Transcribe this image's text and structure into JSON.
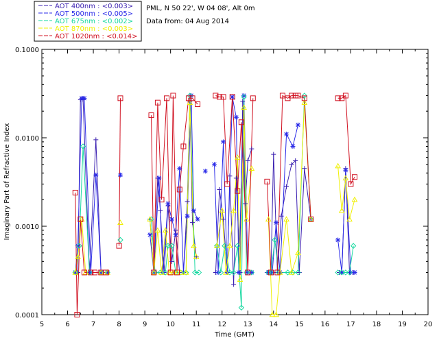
{
  "chart_data": {
    "type": "line",
    "title": "PML, N 50 22', W 04 08', Alt 0m",
    "subtitle": "Data from: 04 Aug 2014",
    "xlabel": "Time (GMT)",
    "ylabel": "Imaginary Part of Refractive Index",
    "xlim": [
      5,
      20
    ],
    "ylim": [
      0.0001,
      0.1
    ],
    "yscale": "log",
    "x_ticks": [
      "5",
      "6",
      "7",
      "8",
      "9",
      "10",
      "11",
      "12",
      "13",
      "14",
      "15",
      "16",
      "17",
      "18",
      "19",
      "20"
    ],
    "y_ticks": [
      "0.0001",
      "0.0010",
      "0.0100",
      "0.1000"
    ],
    "legend_position": "top-left, outside plot",
    "series": [
      {
        "name": "AOT  400nm : <0.003>",
        "color": "#3a1fb0",
        "marker": "plus",
        "points": [
          [
            6.3,
            0.0003
          ],
          [
            6.4,
            0.0003
          ],
          [
            6.5,
            0.027
          ],
          [
            6.6,
            0.027
          ],
          [
            6.85,
            0.0003
          ],
          [
            7.1,
            0.0095
          ],
          [
            7.3,
            0.0003
          ],
          [
            7.55,
            0.0003
          ],
          [
            null,
            null
          ],
          [
            9.2,
            0.0012
          ],
          [
            9.35,
            0.0003
          ],
          [
            9.5,
            0.0035
          ],
          [
            9.6,
            0.0015
          ],
          [
            9.75,
            0.0003
          ],
          [
            9.9,
            0.0017
          ],
          [
            10.05,
            0.0004
          ],
          [
            10.2,
            0.0009
          ],
          [
            10.35,
            0.0003
          ],
          [
            10.5,
            0.0003
          ],
          [
            10.65,
            0.0019
          ],
          [
            10.75,
            0.026
          ],
          [
            10.85,
            0.0011
          ],
          [
            11.0,
            0.00045
          ],
          [
            null,
            null
          ],
          [
            11.75,
            0.0003
          ],
          [
            11.9,
            0.0026
          ],
          [
            12.05,
            0.0012
          ],
          [
            12.2,
            0.0003
          ],
          [
            12.3,
            0.0037
          ],
          [
            12.45,
            0.00022
          ],
          [
            12.55,
            0.0035
          ],
          [
            12.7,
            0.0003
          ],
          [
            12.8,
            0.026
          ],
          [
            12.9,
            0.0018
          ],
          [
            13.0,
            0.0055
          ],
          [
            13.15,
            0.0075
          ],
          [
            null,
            null
          ],
          [
            13.75,
            0.0003
          ],
          [
            13.9,
            0.0003
          ],
          [
            14.0,
            0.0065
          ],
          [
            14.15,
            0.0003
          ],
          [
            14.3,
            0.0013
          ],
          [
            14.5,
            0.0028
          ],
          [
            14.7,
            0.005
          ],
          [
            14.85,
            0.0055
          ],
          [
            15.0,
            0.0003
          ],
          [
            15.2,
            0.0045
          ],
          [
            15.45,
            0.0012
          ],
          [
            null,
            null
          ],
          [
            16.55,
            0.0003
          ],
          [
            16.65,
            0.0003
          ],
          [
            16.8,
            0.0045
          ],
          [
            16.95,
            0.0003
          ],
          [
            17.1,
            0.0003
          ]
        ]
      },
      {
        "name": "AOT  500nm : <0.005>",
        "color": "#2a2ae8",
        "marker": "asterisk",
        "points": [
          [
            6.3,
            0.0003
          ],
          [
            6.4,
            0.0006
          ],
          [
            6.55,
            0.028
          ],
          [
            6.65,
            0.028
          ],
          [
            6.9,
            0.0003
          ],
          [
            7.1,
            0.0038
          ],
          [
            7.3,
            0.0003
          ],
          [
            7.55,
            0.0003
          ],
          [
            null,
            null
          ],
          [
            8.05,
            0.0038
          ],
          [
            null,
            null
          ],
          [
            9.2,
            0.0008
          ],
          [
            9.35,
            0.0003
          ],
          [
            9.55,
            0.0035
          ],
          [
            9.7,
            0.0003
          ],
          [
            9.9,
            0.0018
          ],
          [
            10.05,
            0.0012
          ],
          [
            10.2,
            0.0008
          ],
          [
            10.35,
            0.0045
          ],
          [
            10.5,
            0.0003
          ],
          [
            10.65,
            0.0013
          ],
          [
            10.8,
            0.03
          ],
          [
            10.9,
            0.0015
          ],
          [
            11.05,
            0.0012
          ],
          [
            null,
            null
          ],
          [
            11.35,
            0.0042
          ],
          [
            null,
            null
          ],
          [
            11.7,
            0.005
          ],
          [
            11.85,
            0.0003
          ],
          [
            12.05,
            0.009
          ],
          [
            12.2,
            0.0003
          ],
          [
            12.4,
            0.029
          ],
          [
            12.55,
            0.017
          ],
          [
            12.65,
            0.0003
          ],
          [
            12.85,
            0.03
          ],
          [
            13.0,
            0.0003
          ],
          [
            13.15,
            0.0003
          ],
          [
            null,
            null
          ],
          [
            13.8,
            0.0003
          ],
          [
            13.95,
            0.0003
          ],
          [
            14.1,
            0.0011
          ],
          [
            14.25,
            0.0003
          ],
          [
            14.5,
            0.011
          ],
          [
            14.75,
            0.008
          ],
          [
            14.95,
            0.014
          ],
          [
            null,
            null
          ],
          [
            16.5,
            0.0007
          ],
          [
            16.65,
            0.0003
          ],
          [
            16.8,
            0.0043
          ],
          [
            17.0,
            0.0003
          ],
          [
            17.15,
            0.0003
          ]
        ]
      },
      {
        "name": "AOT  675nm : <0.002>",
        "color": "#16d8a0",
        "marker": "diamond",
        "points": [
          [
            6.3,
            0.0003
          ],
          [
            6.45,
            0.0006
          ],
          [
            6.6,
            0.008
          ],
          [
            6.85,
            0.0003
          ],
          [
            7.3,
            0.0003
          ],
          [
            7.55,
            0.0003
          ],
          [
            null,
            null
          ],
          [
            8.05,
            0.0007
          ],
          [
            null,
            null
          ],
          [
            9.25,
            0.0012
          ],
          [
            9.4,
            0.0003
          ],
          [
            9.6,
            0.0003
          ],
          [
            9.8,
            0.0003
          ],
          [
            9.9,
            0.0006
          ],
          [
            10.05,
            0.0006
          ],
          [
            10.2,
            0.0003
          ],
          [
            10.4,
            0.0003
          ],
          [
            10.6,
            0.0003
          ],
          [
            10.75,
            0.03
          ],
          [
            10.95,
            0.0003
          ],
          [
            11.1,
            0.0003
          ],
          [
            null,
            null
          ],
          [
            11.8,
            0.0006
          ],
          [
            11.95,
            0.0003
          ],
          [
            12.1,
            0.0006
          ],
          [
            12.3,
            0.0003
          ],
          [
            12.45,
            0.0003
          ],
          [
            12.6,
            0.0006
          ],
          [
            12.75,
            0.00012
          ],
          [
            12.85,
            0.029
          ],
          [
            12.95,
            0.0003
          ],
          [
            13.15,
            0.0003
          ],
          [
            null,
            null
          ],
          [
            13.8,
            0.0003
          ],
          [
            13.9,
            0.0003
          ],
          [
            14.05,
            0.0007
          ],
          [
            14.2,
            0.0003
          ],
          [
            14.55,
            0.0003
          ],
          [
            14.75,
            0.0003
          ],
          [
            14.95,
            0.0003
          ],
          [
            15.2,
            0.03
          ],
          [
            15.45,
            0.0012
          ],
          [
            null,
            null
          ],
          [
            16.5,
            0.0003
          ],
          [
            16.65,
            0.0003
          ],
          [
            16.8,
            0.0003
          ],
          [
            16.95,
            0.0003
          ],
          [
            17.1,
            0.0006
          ]
        ]
      },
      {
        "name": "AOT  870nm : <0.003>",
        "color": "#f0f000",
        "marker": "triangle",
        "points": [
          [
            6.3,
            0.0003
          ],
          [
            6.4,
            0.00045
          ],
          [
            6.55,
            0.0012
          ],
          [
            6.7,
            0.0003
          ],
          [
            7.3,
            0.0003
          ],
          [
            7.55,
            0.0003
          ],
          [
            null,
            null
          ],
          [
            8.05,
            0.0011
          ],
          [
            null,
            null
          ],
          [
            9.2,
            0.0012
          ],
          [
            9.35,
            0.0003
          ],
          [
            9.5,
            0.0009
          ],
          [
            9.65,
            0.0003
          ],
          [
            9.8,
            0.0009
          ],
          [
            9.95,
            0.0003
          ],
          [
            10.1,
            0.0003
          ],
          [
            10.25,
            0.0003
          ],
          [
            10.4,
            0.0003
          ],
          [
            10.6,
            0.0003
          ],
          [
            10.75,
            0.025
          ],
          [
            10.9,
            0.0006
          ],
          [
            11.0,
            0.00045
          ],
          [
            null,
            null
          ],
          [
            11.8,
            0.0006
          ],
          [
            12.0,
            0.0015
          ],
          [
            12.15,
            0.0003
          ],
          [
            12.3,
            0.0006
          ],
          [
            12.45,
            0.0015
          ],
          [
            12.6,
            0.006
          ],
          [
            12.7,
            0.00025
          ],
          [
            12.85,
            0.022
          ],
          [
            12.95,
            0.0012
          ],
          [
            13.15,
            0.0045
          ],
          [
            null,
            null
          ],
          [
            13.8,
            0.0012
          ],
          [
            13.95,
            0.0001
          ],
          [
            14.1,
            0.0001
          ],
          [
            14.25,
            0.0003
          ],
          [
            14.5,
            0.0012
          ],
          [
            14.7,
            0.0003
          ],
          [
            14.95,
            0.0005
          ],
          [
            15.2,
            0.025
          ],
          [
            15.45,
            0.0012
          ],
          [
            null,
            null
          ],
          [
            16.5,
            0.0048
          ],
          [
            16.65,
            0.0015
          ],
          [
            16.8,
            0.0035
          ],
          [
            16.95,
            0.0012
          ],
          [
            17.15,
            0.002
          ]
        ]
      },
      {
        "name": "AOT 1020nm : <0.014>",
        "color": "#d01020",
        "marker": "square",
        "points": [
          [
            6.3,
            0.0024
          ],
          [
            6.37,
            0.0001
          ],
          [
            6.5,
            0.0012
          ],
          [
            6.65,
            0.0003
          ],
          [
            6.9,
            0.0003
          ],
          [
            7.05,
            0.0003
          ],
          [
            7.3,
            0.0003
          ],
          [
            7.5,
            0.0003
          ],
          [
            null,
            null
          ],
          [
            8.0,
            0.0006
          ],
          [
            8.05,
            0.028
          ],
          [
            null,
            null
          ],
          [
            9.25,
            0.018
          ],
          [
            9.35,
            0.0003
          ],
          [
            9.5,
            0.025
          ],
          [
            9.65,
            0.002
          ],
          [
            9.85,
            0.028
          ],
          [
            10.0,
            0.0003
          ],
          [
            10.1,
            0.03
          ],
          [
            10.25,
            0.0003
          ],
          [
            10.35,
            0.0026
          ],
          [
            10.5,
            0.008
          ],
          [
            10.7,
            0.028
          ],
          [
            10.85,
            0.028
          ],
          [
            11.05,
            0.024
          ],
          [
            null,
            null
          ],
          [
            11.75,
            0.03
          ],
          [
            11.9,
            0.029
          ],
          [
            12.05,
            0.029
          ],
          [
            12.2,
            0.003
          ],
          [
            12.4,
            0.029
          ],
          [
            12.6,
            0.0025
          ],
          [
            12.75,
            0.015
          ],
          [
            13.0,
            0.0003
          ],
          [
            13.2,
            0.028
          ],
          [
            null,
            null
          ],
          [
            13.75,
            0.0032
          ],
          [
            13.9,
            0.0003
          ],
          [
            14.15,
            0.0003
          ],
          [
            14.35,
            0.03
          ],
          [
            14.55,
            0.028
          ],
          [
            14.7,
            0.03
          ],
          [
            14.85,
            0.03
          ],
          [
            14.95,
            0.03
          ],
          [
            15.2,
            0.028
          ],
          [
            15.45,
            0.0012
          ],
          [
            null,
            null
          ],
          [
            16.5,
            0.028
          ],
          [
            16.65,
            0.028
          ],
          [
            16.8,
            0.03
          ],
          [
            17.0,
            0.003
          ],
          [
            17.15,
            0.0036
          ]
        ]
      }
    ]
  }
}
